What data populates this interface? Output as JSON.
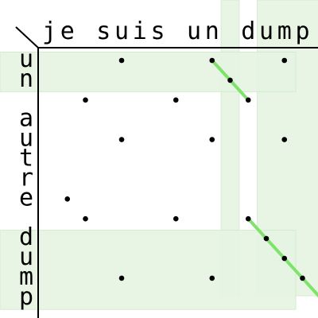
{
  "top_text": "je suis un dump",
  "left_text": "un autre dump",
  "colors": {
    "highlight_fill": "#e6f4e2",
    "highlight_stroke": "#d4ecce",
    "match_line": "#7ee36a",
    "dot": "#000000",
    "axis": "#000000"
  },
  "highlight_bands": [
    {
      "axis": "col",
      "from": 10,
      "to": 10
    },
    {
      "axis": "col",
      "from": 12,
      "to": 15
    },
    {
      "axis": "row",
      "from": 0,
      "to": 1
    },
    {
      "axis": "row",
      "from": 9,
      "to": 12
    }
  ],
  "dots": [
    [
      0,
      4
    ],
    [
      0,
      9
    ],
    [
      0,
      13
    ],
    [
      1,
      10
    ],
    [
      2,
      2
    ],
    [
      2,
      7
    ],
    [
      2,
      11
    ],
    [
      4,
      4
    ],
    [
      4,
      9
    ],
    [
      4,
      13
    ],
    [
      7,
      1
    ],
    [
      8,
      2
    ],
    [
      8,
      7
    ],
    [
      8,
      11
    ],
    [
      9,
      12
    ],
    [
      10,
      13
    ],
    [
      11,
      4
    ],
    [
      11,
      9
    ],
    [
      11,
      14
    ],
    [
      12,
      15
    ]
  ],
  "match_runs": [
    {
      "start": [
        0,
        9
      ],
      "end": [
        2,
        11
      ]
    },
    {
      "start": [
        8,
        11
      ],
      "end": [
        12,
        15
      ]
    }
  ]
}
